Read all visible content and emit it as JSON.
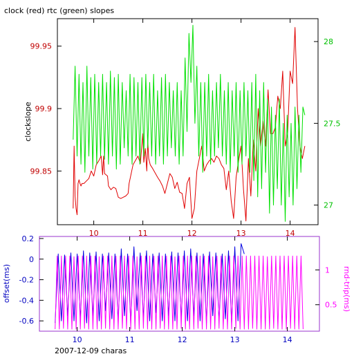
{
  "chart_data": [
    {
      "type": "line",
      "title": "clock (red) rtc (green) slopes",
      "ylabel": "clockslope",
      "xlim": [
        9.4,
        14.4
      ],
      "ylim": [
        99.807,
        99.972
      ],
      "y2lim": [
        26.88,
        28.14
      ],
      "x_ticks": [
        10,
        11,
        12,
        13,
        14
      ],
      "y_ticks": [
        99.85,
        99.9,
        99.95
      ],
      "y_tick_labels": [
        "99.85",
        "99.9",
        "99.95"
      ],
      "y2_ticks": [
        27,
        27.5,
        28
      ],
      "y2_tick_labels": [
        "27",
        "27.5",
        "28"
      ],
      "colors": {
        "clock": "#e00000",
        "rtc": "#00e000",
        "axis_left": "#c00000",
        "axis_right": "#00c000",
        "x_ticks": "#c00000"
      },
      "series": [
        {
          "name": "clock",
          "axis": "left",
          "x": [
            9.58,
            9.6,
            9.62,
            9.64,
            9.66,
            9.68,
            9.7,
            9.72,
            9.74,
            9.76,
            9.8,
            9.85,
            9.9,
            9.95,
            10.0,
            10.05,
            10.1,
            10.15,
            10.18,
            10.2,
            10.22,
            10.25,
            10.28,
            10.3,
            10.35,
            10.4,
            10.45,
            10.5,
            10.55,
            10.6,
            10.65,
            10.7,
            10.72,
            10.8,
            10.9,
            10.95,
            11.0,
            11.02,
            11.05,
            11.08,
            11.1,
            11.12,
            11.15,
            11.2,
            11.3,
            11.35,
            11.4,
            11.45,
            11.5,
            11.55,
            11.6,
            11.65,
            11.7,
            11.75,
            11.8,
            11.85,
            11.9,
            11.95,
            12.0,
            12.05,
            12.1,
            12.15,
            12.2,
            12.25,
            12.3,
            12.35,
            12.4,
            12.45,
            12.5,
            12.55,
            12.6,
            12.65,
            12.7,
            12.75,
            12.8,
            12.85,
            12.9,
            12.95,
            13.0,
            13.05,
            13.1,
            13.15,
            13.2,
            13.25,
            13.3,
            13.35,
            13.4,
            13.45,
            13.5,
            13.55,
            13.6,
            13.65,
            13.7,
            13.75,
            13.8,
            13.85,
            13.9,
            13.95,
            14.0,
            14.05,
            14.1,
            14.15,
            14.2,
            14.25,
            14.3
          ],
          "y": [
            99.82,
            99.87,
            99.83,
            99.82,
            99.815,
            99.84,
            99.843,
            99.84,
            99.838,
            99.84,
            99.84,
            99.842,
            99.844,
            99.85,
            99.846,
            99.855,
            99.858,
            99.862,
            99.847,
            99.862,
            99.848,
            99.847,
            99.846,
            99.838,
            99.835,
            99.837,
            99.836,
            99.829,
            99.828,
            99.829,
            99.83,
            99.832,
            99.84,
            99.855,
            99.862,
            99.856,
            99.88,
            99.857,
            99.868,
            99.85,
            99.874,
            99.86,
            99.855,
            99.852,
            99.845,
            99.842,
            99.838,
            99.832,
            99.84,
            99.848,
            99.845,
            99.836,
            99.841,
            99.833,
            99.832,
            99.82,
            99.84,
            99.845,
            99.812,
            99.82,
            99.85,
            99.86,
            99.87,
            99.85,
            99.855,
            99.858,
            99.86,
            99.857,
            99.862,
            99.86,
            99.855,
            99.852,
            99.835,
            99.85,
            99.826,
            99.812,
            99.845,
            99.858,
            99.87,
            99.835,
            99.81,
            99.86,
            99.83,
            99.875,
            99.85,
            99.9,
            99.87,
            99.89,
            99.87,
            99.915,
            99.88,
            99.88,
            99.885,
            99.91,
            99.9,
            99.93,
            99.87,
            99.88,
            99.93,
            99.92,
            99.965,
            99.9,
            99.87,
            99.86,
            99.87
          ]
        },
        {
          "name": "rtc",
          "axis": "right",
          "x": [
            9.58,
            9.62,
            9.66,
            9.7,
            9.74,
            9.78,
            9.82,
            9.86,
            9.9,
            9.94,
            9.98,
            10.02,
            10.06,
            10.1,
            10.14,
            10.18,
            10.22,
            10.26,
            10.3,
            10.34,
            10.38,
            10.42,
            10.46,
            10.5,
            10.54,
            10.58,
            10.62,
            10.66,
            10.7,
            10.74,
            10.78,
            10.82,
            10.86,
            10.9,
            10.94,
            10.98,
            11.02,
            11.06,
            11.1,
            11.14,
            11.18,
            11.22,
            11.26,
            11.3,
            11.34,
            11.38,
            11.42,
            11.46,
            11.5,
            11.54,
            11.58,
            11.62,
            11.66,
            11.7,
            11.74,
            11.78,
            11.82,
            11.86,
            11.9,
            11.94,
            11.98,
            12.02,
            12.06,
            12.1,
            12.14,
            12.18,
            12.22,
            12.26,
            12.3,
            12.34,
            12.38,
            12.42,
            12.46,
            12.5,
            12.54,
            12.58,
            12.62,
            12.66,
            12.7,
            12.74,
            12.78,
            12.82,
            12.86,
            12.9,
            12.94,
            12.98,
            13.02,
            13.06,
            13.1,
            13.14,
            13.18,
            13.22,
            13.26,
            13.3,
            13.34,
            13.38,
            13.42,
            13.46,
            13.5,
            13.54,
            13.58,
            13.62,
            13.66,
            13.7,
            13.74,
            13.78,
            13.82,
            13.86,
            13.9,
            13.94,
            13.98,
            14.02,
            14.06,
            14.1,
            14.14,
            14.18,
            14.22,
            14.26,
            14.3
          ],
          "y": [
            27.4,
            27.85,
            27.3,
            27.8,
            27.25,
            27.75,
            27.2,
            27.85,
            27.3,
            27.78,
            27.22,
            27.8,
            27.25,
            27.75,
            27.3,
            27.8,
            27.28,
            27.75,
            27.25,
            27.82,
            27.3,
            27.78,
            27.22,
            27.8,
            27.25,
            27.75,
            27.35,
            27.7,
            27.3,
            27.8,
            27.25,
            27.78,
            27.3,
            27.75,
            27.25,
            27.78,
            27.3,
            27.8,
            27.35,
            27.75,
            27.3,
            27.8,
            27.25,
            27.7,
            27.3,
            27.78,
            27.25,
            27.8,
            27.3,
            27.75,
            27.35,
            27.7,
            27.3,
            27.75,
            27.25,
            27.7,
            27.3,
            27.9,
            27.45,
            28.05,
            27.75,
            28.1,
            27.5,
            27.85,
            27.3,
            27.75,
            27.2,
            27.75,
            27.3,
            27.8,
            27.25,
            27.7,
            27.3,
            27.75,
            27.35,
            27.8,
            27.3,
            27.7,
            27.25,
            27.75,
            27.2,
            27.7,
            27.3,
            27.75,
            27.2,
            27.7,
            27.25,
            27.75,
            27.3,
            27.7,
            27.2,
            27.75,
            27.15,
            27.8,
            27.05,
            27.7,
            27.1,
            27.75,
            27.2,
            27.65,
            26.95,
            27.6,
            27.0,
            27.55,
            27.1,
            27.65,
            27.0,
            27.5,
            26.9,
            27.55,
            27.05,
            27.5,
            27.0,
            27.6,
            27.1,
            27.55,
            27.2,
            27.6,
            27.55
          ]
        }
      ]
    },
    {
      "type": "line",
      "title": "2007-12-09 charas",
      "ylabel": "offset(ms)",
      "y2label": "rnd-trip(ms)",
      "xlim": [
        9.4,
        14.4
      ],
      "ylim": [
        -0.7,
        0.22
      ],
      "y2lim": [
        0.12,
        1.48
      ],
      "x_ticks": [
        10,
        11,
        12,
        13,
        14
      ],
      "y_ticks": [
        -0.6,
        -0.4,
        -0.2,
        0,
        0.2
      ],
      "y_tick_labels": [
        "-0.6",
        "-0.4",
        "-0.2",
        "0",
        "0.2"
      ],
      "y2_ticks": [
        0.5,
        1
      ],
      "y2_tick_labels": [
        "0.5",
        "1"
      ],
      "colors": {
        "offset": "#0000e0",
        "rnd_trip": "#ff00ff",
        "axis_left": "#0000c0",
        "axis_right": "#ff00ff",
        "x_ticks": "#0000c0"
      },
      "series": [
        {
          "name": "offset",
          "axis": "left",
          "x": [
            9.58,
            9.64,
            9.7,
            9.76,
            9.82,
            9.88,
            9.94,
            10.0,
            10.06,
            10.12,
            10.18,
            10.24,
            10.3,
            10.36,
            10.42,
            10.48,
            10.54,
            10.6,
            10.66,
            10.72,
            10.78,
            10.84,
            10.9,
            10.96,
            11.02,
            11.08,
            11.14,
            11.2,
            11.26,
            11.32,
            11.38,
            11.44,
            11.5,
            11.56,
            11.62,
            11.68,
            11.74,
            11.8,
            11.86,
            11.92,
            11.98,
            12.04,
            12.1,
            12.16,
            12.22,
            12.28,
            12.34,
            12.4,
            12.46,
            12.52,
            12.58,
            12.64,
            12.7,
            12.76,
            12.82,
            12.88,
            12.94,
            13.0,
            13.06,
            13.12,
            13.18
          ],
          "y": [
            -0.62,
            0.05,
            -0.6,
            0.04,
            -0.55,
            0.06,
            -0.6,
            0.05,
            -0.58,
            0.08,
            -0.62,
            0.06,
            -0.55,
            0.07,
            -0.6,
            0.05,
            -0.5,
            0.06,
            -0.58,
            0.05,
            -0.6,
            0.1,
            -0.55,
            0.05,
            -0.62,
            0.12,
            -0.5,
            0.06,
            -0.58,
            0.08,
            -0.6,
            0.05,
            -0.52,
            0.06,
            -0.6,
            0.05,
            -0.55,
            0.07,
            -0.6,
            0.06,
            -0.58,
            0.08,
            -0.6,
            0.1,
            -0.55,
            0.06,
            -0.6,
            0.05,
            -0.62,
            0.07,
            -0.55,
            0.06,
            -0.6,
            0.05,
            -0.58,
            0.08,
            -0.62,
            0.12,
            -0.6,
            0.15,
            0.05
          ]
        },
        {
          "name": "rnd-trip",
          "axis": "right",
          "x": [
            9.58,
            9.62,
            9.66,
            9.7,
            9.74,
            9.78,
            9.82,
            9.86,
            9.9,
            9.94,
            9.98,
            10.02,
            10.06,
            10.1,
            10.14,
            10.18,
            10.22,
            10.26,
            10.3,
            10.34,
            10.38,
            10.42,
            10.46,
            10.5,
            10.54,
            10.58,
            10.62,
            10.66,
            10.7,
            10.74,
            10.78,
            10.82,
            10.86,
            10.9,
            10.94,
            10.98,
            11.02,
            11.06,
            11.1,
            11.14,
            11.18,
            11.22,
            11.26,
            11.3,
            11.34,
            11.38,
            11.42,
            11.46,
            11.5,
            11.54,
            11.58,
            11.62,
            11.66,
            11.7,
            11.74,
            11.78,
            11.82,
            11.86,
            11.9,
            11.94,
            11.98,
            12.02,
            12.06,
            12.1,
            12.14,
            12.18,
            12.22,
            12.26,
            12.3,
            12.34,
            12.38,
            12.42,
            12.46,
            12.5,
            12.54,
            12.58,
            12.62,
            12.66,
            12.7,
            12.74,
            12.78,
            12.82,
            12.86,
            12.9,
            12.94,
            12.98,
            13.02,
            13.06,
            13.1,
            13.14,
            13.18,
            13.22,
            13.26,
            13.3,
            13.34,
            13.38,
            13.42,
            13.46,
            13.5,
            13.54,
            13.58,
            13.62,
            13.66,
            13.7,
            13.74,
            13.78,
            13.82,
            13.86,
            13.9,
            13.94,
            13.98,
            14.02,
            14.06,
            14.1,
            14.14,
            14.18,
            14.22,
            14.26,
            14.3
          ],
          "y": [
            0.15,
            1.2,
            0.15,
            1.2,
            0.16,
            1.2,
            0.15,
            1.2,
            0.15,
            1.19,
            0.15,
            1.2,
            0.15,
            1.2,
            0.16,
            1.2,
            0.15,
            1.2,
            0.15,
            1.2,
            0.15,
            1.19,
            0.15,
            1.2,
            0.16,
            1.2,
            0.15,
            1.2,
            0.15,
            1.2,
            0.15,
            1.2,
            0.16,
            1.2,
            0.15,
            1.2,
            0.15,
            1.2,
            0.15,
            1.19,
            0.15,
            1.2,
            0.16,
            1.2,
            0.15,
            1.2,
            0.15,
            1.2,
            0.15,
            1.2,
            0.16,
            1.2,
            0.15,
            1.2,
            0.15,
            1.2,
            0.15,
            1.19,
            0.15,
            1.2,
            0.16,
            1.2,
            0.15,
            1.2,
            0.15,
            1.2,
            0.15,
            1.2,
            0.16,
            1.2,
            0.15,
            1.2,
            0.15,
            1.2,
            0.15,
            1.19,
            0.15,
            1.2,
            0.16,
            1.2,
            0.15,
            1.2,
            0.15,
            1.2,
            0.15,
            1.2,
            0.16,
            1.2,
            0.15,
            1.2,
            0.15,
            1.2,
            0.15,
            1.2,
            0.16,
            1.2,
            0.15,
            1.2,
            0.15,
            1.2,
            0.15,
            1.19,
            0.15,
            1.2,
            0.16,
            1.2,
            0.15,
            1.2,
            0.15,
            1.2,
            0.15,
            1.2,
            0.16,
            1.2,
            0.15,
            1.2,
            0.15,
            1.2,
            0.15
          ]
        }
      ]
    }
  ]
}
